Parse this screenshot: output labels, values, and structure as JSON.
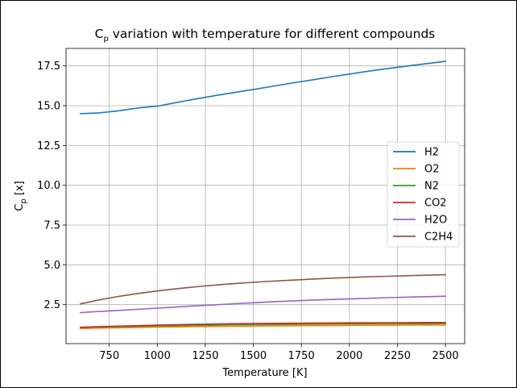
{
  "chart_data": {
    "type": "line",
    "title": {
      "prefix": "C",
      "sub": "p",
      "suffix": " variation with temperature for different compounds"
    },
    "xlabel": "Temperature [K]",
    "ylabel": {
      "prefix": "C",
      "sub": "p",
      "suffix": " [x]"
    },
    "xlim": [
      525,
      2600
    ],
    "ylim": [
      0.05,
      18.6
    ],
    "xticks": [
      750,
      1000,
      1250,
      1500,
      1750,
      2000,
      2250,
      2500
    ],
    "xtick_labels": [
      "750",
      "1000",
      "1250",
      "1500",
      "1750",
      "2000",
      "2250",
      "2500"
    ],
    "yticks": [
      2.5,
      5.0,
      7.5,
      10.0,
      12.5,
      15.0,
      17.5
    ],
    "ytick_labels": [
      "2.5",
      "5.0",
      "7.5",
      "10.0",
      "12.5",
      "15.0",
      "17.5"
    ],
    "grid": true,
    "legend_position": "center-right",
    "x": [
      600,
      700,
      800,
      900,
      1000,
      1100,
      1200,
      1300,
      1400,
      1500,
      1600,
      1700,
      1800,
      1900,
      2000,
      2100,
      2200,
      2300,
      2400,
      2500
    ],
    "series": [
      {
        "name": "H2",
        "color": "#1f77b4",
        "values": [
          14.5,
          14.55,
          14.68,
          14.86,
          14.97,
          15.2,
          15.42,
          15.63,
          15.83,
          16.02,
          16.22,
          16.42,
          16.61,
          16.8,
          16.99,
          17.17,
          17.34,
          17.49,
          17.64,
          17.79
        ]
      },
      {
        "name": "O2",
        "color": "#ff7f0e",
        "values": [
          1.0,
          1.03,
          1.05,
          1.07,
          1.09,
          1.1,
          1.12,
          1.13,
          1.14,
          1.15,
          1.16,
          1.17,
          1.18,
          1.18,
          1.19,
          1.2,
          1.2,
          1.21,
          1.21,
          1.22
        ]
      },
      {
        "name": "N2",
        "color": "#2ca02c",
        "values": [
          1.07,
          1.09,
          1.12,
          1.14,
          1.16,
          1.18,
          1.2,
          1.21,
          1.23,
          1.24,
          1.25,
          1.26,
          1.27,
          1.28,
          1.28,
          1.29,
          1.29,
          1.3,
          1.3,
          1.31
        ]
      },
      {
        "name": "CO2",
        "color": "#d62728",
        "values": [
          1.08,
          1.12,
          1.15,
          1.18,
          1.21,
          1.24,
          1.26,
          1.28,
          1.3,
          1.31,
          1.32,
          1.33,
          1.34,
          1.35,
          1.36,
          1.36,
          1.37,
          1.37,
          1.38,
          1.38
        ]
      },
      {
        "name": "H2O",
        "color": "#9467bd",
        "values": [
          2.0,
          2.07,
          2.14,
          2.21,
          2.28,
          2.35,
          2.42,
          2.49,
          2.56,
          2.62,
          2.68,
          2.73,
          2.78,
          2.82,
          2.86,
          2.9,
          2.94,
          2.97,
          3.0,
          3.03
        ]
      },
      {
        "name": "C2H4",
        "color": "#8c564b",
        "values": [
          2.55,
          2.8,
          3.02,
          3.2,
          3.36,
          3.5,
          3.62,
          3.73,
          3.82,
          3.9,
          3.98,
          4.04,
          4.1,
          4.16,
          4.2,
          4.25,
          4.28,
          4.32,
          4.35,
          4.38
        ]
      }
    ]
  }
}
